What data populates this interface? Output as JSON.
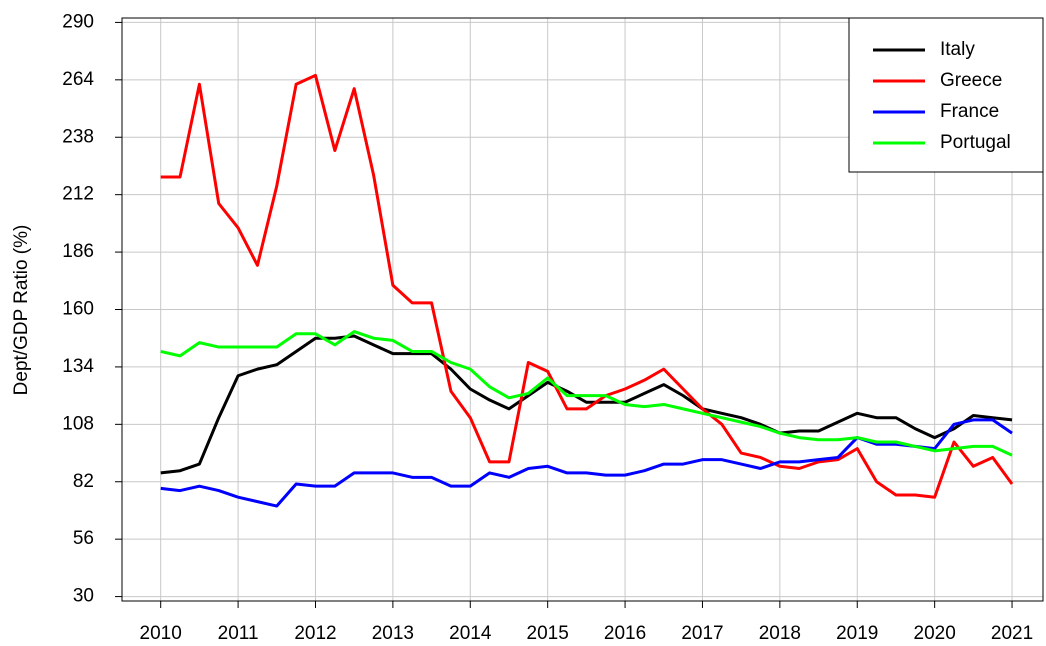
{
  "chart_data": {
    "type": "line",
    "y_label": "Dept/GDP Ratio (%)",
    "x": [
      2010,
      2010.25,
      2010.5,
      2010.75,
      2011,
      2011.25,
      2011.5,
      2011.75,
      2012,
      2012.25,
      2012.5,
      2012.75,
      2013,
      2013.25,
      2013.5,
      2013.75,
      2014,
      2014.25,
      2014.5,
      2014.75,
      2015,
      2015.25,
      2015.5,
      2015.75,
      2016,
      2016.25,
      2016.5,
      2016.75,
      2017,
      2017.25,
      2017.5,
      2017.75,
      2018,
      2018.25,
      2018.5,
      2018.75,
      2019,
      2019.25,
      2019.5,
      2019.75,
      2020,
      2020.25,
      2020.5,
      2020.75,
      2021
    ],
    "series": [
      {
        "name": "Italy",
        "color": "#000000",
        "values": [
          86,
          87,
          90,
          111,
          130,
          133,
          135,
          141,
          147,
          147,
          148,
          144,
          140,
          140,
          140,
          133,
          124,
          119,
          115,
          121,
          127,
          123,
          118,
          118,
          118,
          122,
          126,
          121,
          115,
          113,
          111,
          108,
          104,
          105,
          105,
          109,
          113,
          111,
          111,
          106,
          102,
          106,
          112,
          111,
          110
        ]
      },
      {
        "name": "Greece",
        "color": "#ff0000",
        "values": [
          220,
          220,
          262,
          208,
          197,
          180,
          216,
          262,
          266,
          232,
          260,
          221,
          171,
          163,
          163,
          123,
          111,
          91,
          91,
          136,
          132,
          115,
          115,
          121,
          124,
          128,
          133,
          124,
          115,
          108,
          95,
          93,
          89,
          88,
          91,
          92,
          97,
          82,
          76,
          76,
          75,
          100,
          89,
          93,
          81
        ]
      },
      {
        "name": "France",
        "color": "#0000ff",
        "values": [
          79,
          78,
          80,
          78,
          75,
          73,
          71,
          81,
          80,
          80,
          86,
          86,
          86,
          84,
          84,
          80,
          80,
          86,
          84,
          88,
          89,
          86,
          86,
          85,
          85,
          87,
          90,
          90,
          92,
          92,
          90,
          88,
          91,
          91,
          92,
          93,
          102,
          99,
          99,
          98,
          97,
          108,
          110,
          110,
          104
        ]
      },
      {
        "name": "Portugal",
        "color": "#00ff00",
        "values": [
          141,
          139,
          145,
          143,
          143,
          143,
          143,
          149,
          149,
          144,
          150,
          147,
          146,
          141,
          141,
          136,
          133,
          125,
          120,
          122,
          129,
          121,
          121,
          121,
          117,
          116,
          117,
          115,
          113,
          111,
          109,
          107,
          104,
          102,
          101,
          101,
          102,
          100,
          100,
          98,
          96,
          97,
          98,
          98,
          94
        ]
      }
    ],
    "xlim": [
      2009.5,
      2021.4
    ],
    "xticks": [
      2010,
      2011,
      2012,
      2013,
      2014,
      2015,
      2016,
      2017,
      2018,
      2019,
      2020,
      2021
    ],
    "ylim": [
      28,
      292
    ],
    "yticks": [
      30,
      56,
      82,
      108,
      134,
      160,
      186,
      212,
      238,
      264,
      290
    ],
    "grid": true,
    "legend": "topright"
  }
}
